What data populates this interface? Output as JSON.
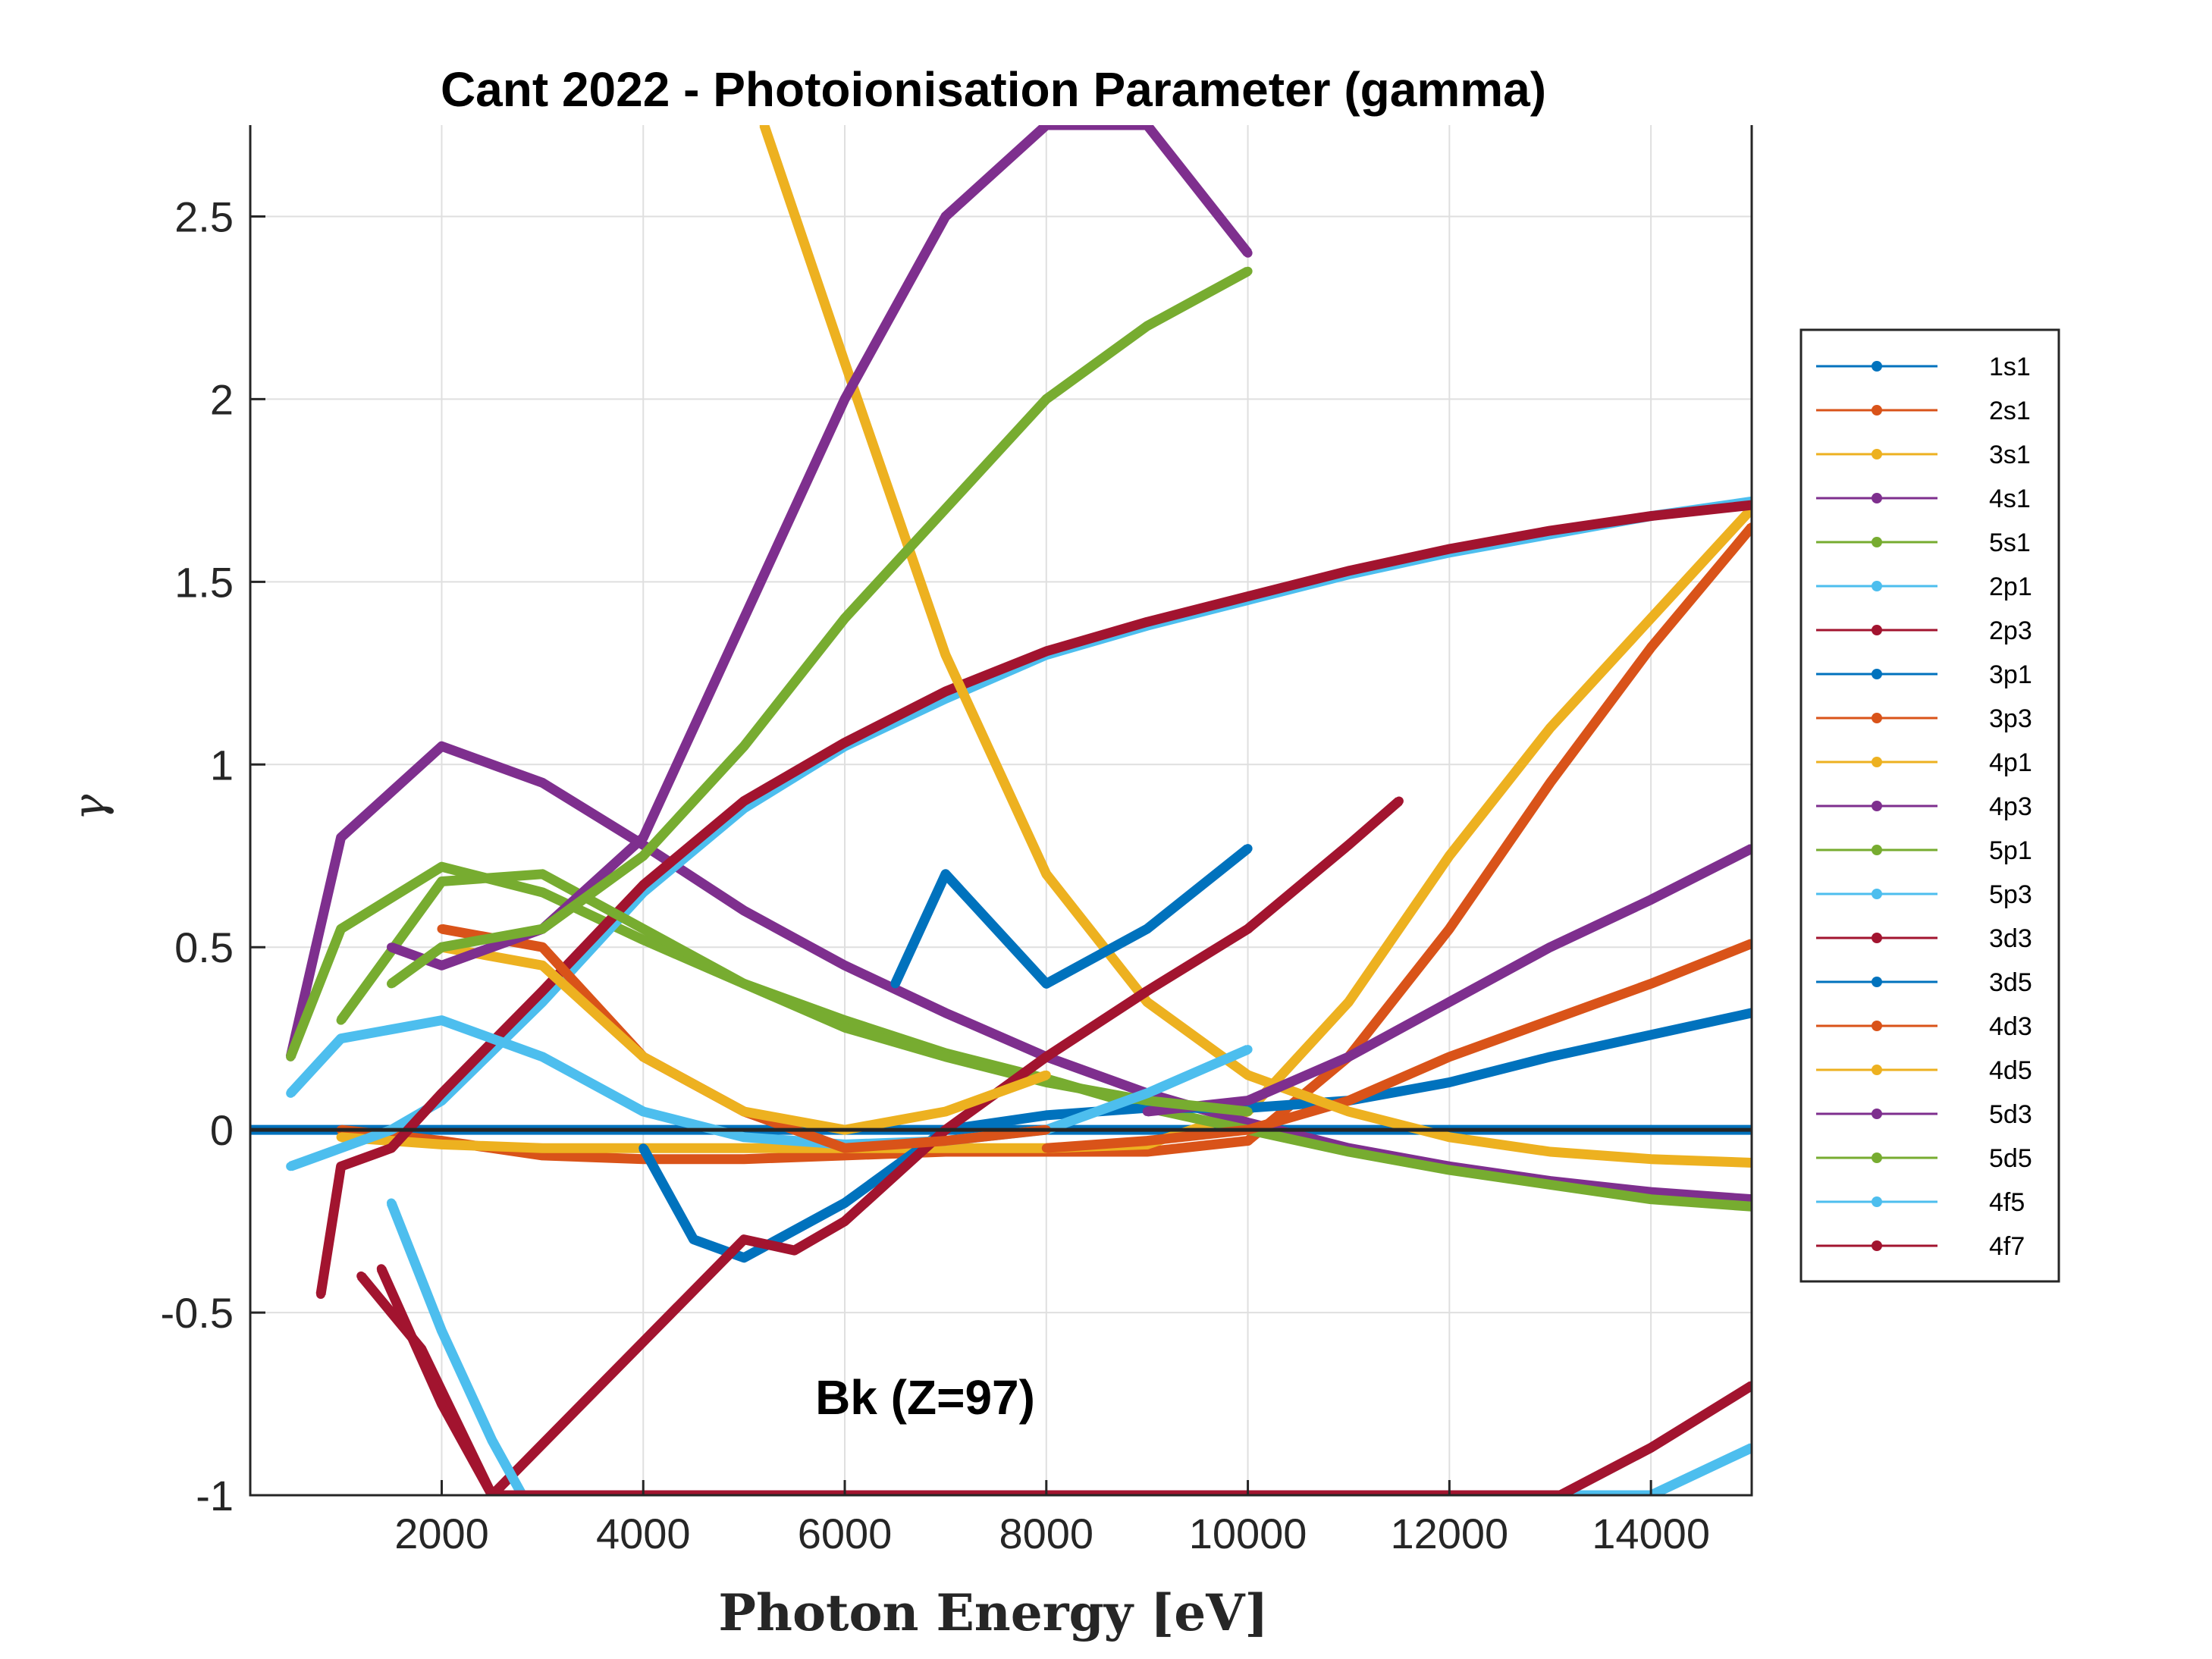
{
  "chart_data": {
    "type": "line",
    "title": "Cant 2022 - Photoionisation Parameter (gamma)",
    "xlabel": "Photon Energy [eV]",
    "ylabel": "γ",
    "xlim": [
      100,
      15000
    ],
    "ylim": [
      -1,
      2.75
    ],
    "xticks": [
      2000,
      4000,
      6000,
      8000,
      10000,
      12000,
      14000
    ],
    "xtick_labels": [
      "2000",
      "4000",
      "6000",
      "8000",
      "10000",
      "12000",
      "14000"
    ],
    "yticks": [
      -1,
      -0.5,
      0,
      0.5,
      1,
      1.5,
      2,
      2.5
    ],
    "ytick_labels": [
      "-1",
      "-0.5",
      "0",
      "0.5",
      "1",
      "1.5",
      "2",
      "2.5"
    ],
    "grid": true,
    "legend_position": "right",
    "annotation": "Bk (Z=97)",
    "series": [
      {
        "name": "1s1",
        "color": "#0072BD",
        "x": [
          100,
          15000
        ],
        "y": [
          0,
          0
        ]
      },
      {
        "name": "2s1",
        "color": "#D95319",
        "x": [
          1000,
          2000,
          3000,
          4000,
          5000,
          6000,
          7000,
          8000,
          9000,
          10000,
          11000,
          12000,
          13000,
          14000,
          15000
        ],
        "y": [
          0.0,
          -0.03,
          -0.07,
          -0.08,
          -0.08,
          -0.07,
          -0.06,
          -0.06,
          -0.06,
          -0.03,
          0.2,
          0.55,
          0.95,
          1.32,
          1.65
        ]
      },
      {
        "name": "3s1",
        "color": "#EDB120",
        "x": [
          1000,
          2000,
          3000,
          4000,
          5000,
          6000,
          7000,
          8000,
          9000,
          10000,
          11000,
          12000,
          13000,
          14000,
          15000
        ],
        "y": [
          -0.02,
          -0.04,
          -0.05,
          -0.05,
          -0.05,
          -0.05,
          -0.05,
          -0.05,
          -0.04,
          0.05,
          0.35,
          0.75,
          1.1,
          1.4,
          1.7
        ]
      },
      {
        "name": "4s1",
        "color": "#7E2F8E",
        "x": [
          500,
          1000,
          2000,
          3000,
          4000,
          5000,
          6000,
          7000,
          8000,
          9000,
          10000,
          11000,
          12000,
          13000,
          14000,
          15000
        ],
        "y": [
          0.2,
          0.8,
          1.05,
          0.95,
          0.78,
          0.6,
          0.45,
          0.32,
          0.2,
          0.1,
          0.02,
          -0.05,
          -0.1,
          -0.14,
          -0.17,
          -0.19
        ]
      },
      {
        "name": "5s1",
        "color": "#77AC30",
        "x": [
          500,
          1000,
          2000,
          3000,
          4000,
          5000,
          6000,
          7000,
          8000,
          9000,
          10000,
          11000,
          12000,
          13000,
          14000,
          15000
        ],
        "y": [
          0.2,
          0.55,
          0.72,
          0.65,
          0.52,
          0.4,
          0.3,
          0.21,
          0.14,
          0.06,
          0.0,
          -0.06,
          -0.11,
          -0.15,
          -0.19,
          -0.21
        ]
      },
      {
        "name": "2p1",
        "color": "#4DBEEE",
        "x": [
          500,
          1000,
          1500,
          2000,
          3000,
          4000,
          5000,
          6000,
          7000,
          8000,
          9000,
          10000,
          11000,
          12000,
          13000,
          14000,
          15000
        ],
        "y": [
          -0.1,
          -0.05,
          0.0,
          0.08,
          0.35,
          0.65,
          0.88,
          1.05,
          1.18,
          1.3,
          1.38,
          1.45,
          1.52,
          1.58,
          1.63,
          1.68,
          1.72
        ]
      },
      {
        "name": "2p3",
        "color": "#A2142F",
        "x": [
          800,
          1000,
          1500,
          2000,
          3000,
          4000,
          5000,
          6000,
          7000,
          8000,
          9000,
          10000,
          11000,
          12000,
          13000,
          14000,
          15000
        ],
        "y": [
          -0.45,
          -0.1,
          -0.05,
          0.1,
          0.38,
          0.67,
          0.9,
          1.06,
          1.2,
          1.31,
          1.39,
          1.46,
          1.53,
          1.59,
          1.64,
          1.68,
          1.71
        ]
      },
      {
        "name": "3p1",
        "color": "#0072BD",
        "x": [
          4000,
          4500,
          5000,
          6000,
          7000,
          8000,
          9000,
          10000,
          11000,
          12000,
          13000,
          14000,
          15000
        ],
        "y": [
          -0.05,
          -0.3,
          -0.35,
          -0.2,
          0.0,
          0.04,
          0.06,
          0.06,
          0.08,
          0.13,
          0.2,
          0.26,
          0.32
        ]
      },
      {
        "name": "3p3",
        "color": "#D95319",
        "x": [
          8000,
          9000,
          10000,
          11000,
          12000,
          13000,
          14000,
          15000
        ],
        "y": [
          -0.05,
          -0.03,
          0.0,
          0.08,
          0.2,
          0.3,
          0.4,
          0.51
        ]
      },
      {
        "name": "4p1",
        "color": "#EDB120",
        "x": [
          5200,
          6000,
          7000,
          8000,
          9000,
          10000,
          11000,
          12000,
          13000,
          14000,
          15000
        ],
        "y": [
          2.75,
          2.1,
          1.3,
          0.7,
          0.35,
          0.15,
          0.05,
          -0.02,
          -0.06,
          -0.08,
          -0.09
        ]
      },
      {
        "name": "4p3",
        "color": "#7E2F8E",
        "x": [
          9000,
          10000,
          11000,
          12000,
          13000,
          14000,
          15000
        ],
        "y": [
          0.05,
          0.08,
          0.2,
          0.35,
          0.5,
          0.63,
          0.77
        ]
      },
      {
        "name": "5p1",
        "color": "#77AC30",
        "x": [
          1000,
          2000,
          3000,
          4000,
          5000,
          6000,
          7000,
          8000,
          9000,
          10000
        ],
        "y": [
          0.3,
          0.68,
          0.7,
          0.55,
          0.4,
          0.28,
          0.2,
          0.13,
          0.08,
          0.05
        ]
      },
      {
        "name": "5p3",
        "color": "#4DBEEE",
        "x": [
          500,
          1000,
          2000,
          3000,
          4000,
          5000,
          6000,
          7000,
          8000,
          9000,
          10000
        ],
        "y": [
          0.1,
          0.25,
          0.3,
          0.2,
          0.05,
          -0.02,
          -0.04,
          -0.03,
          0.0,
          0.1,
          0.22
        ]
      },
      {
        "name": "3d3",
        "color": "#A2142F",
        "x": [
          1200,
          1800,
          2500,
          5000,
          5500,
          6000,
          7000,
          8000,
          9000,
          10000,
          11000,
          11500
        ],
        "y": [
          -0.4,
          -0.6,
          -1.0,
          -0.3,
          -0.33,
          -0.25,
          0.0,
          0.2,
          0.38,
          0.55,
          0.78,
          0.9
        ]
      },
      {
        "name": "3d5",
        "color": "#0072BD",
        "x": [
          6500,
          7000,
          7500,
          8000,
          9000,
          10000
        ],
        "y": [
          0.4,
          0.7,
          0.55,
          0.4,
          0.55,
          0.77
        ]
      },
      {
        "name": "4d3",
        "color": "#D95319",
        "x": [
          2000,
          3000,
          4000,
          5000,
          6000,
          7000,
          8000
        ],
        "y": [
          0.55,
          0.5,
          0.2,
          0.05,
          -0.05,
          -0.03,
          0.0
        ]
      },
      {
        "name": "4d5",
        "color": "#EDB120",
        "x": [
          2000,
          3000,
          4000,
          5000,
          6000,
          7000,
          8000
        ],
        "y": [
          0.5,
          0.45,
          0.2,
          0.05,
          0.0,
          0.05,
          0.15
        ]
      },
      {
        "name": "5d3",
        "color": "#7E2F8E",
        "x": [
          1500,
          2000,
          3000,
          4000,
          5000,
          6000,
          7000,
          8000,
          9000,
          10000
        ],
        "y": [
          0.5,
          0.45,
          0.55,
          0.8,
          1.4,
          2.0,
          2.5,
          2.75,
          2.75,
          2.4
        ]
      },
      {
        "name": "5d5",
        "color": "#77AC30",
        "x": [
          1500,
          2000,
          3000,
          4000,
          5000,
          6000,
          7000,
          8000,
          9000,
          10000
        ],
        "y": [
          0.4,
          0.5,
          0.55,
          0.75,
          1.05,
          1.4,
          1.7,
          2.0,
          2.2,
          2.35
        ]
      },
      {
        "name": "4f5",
        "color": "#4DBEEE",
        "x": [
          1500,
          2000,
          2500,
          2800,
          14000,
          15000
        ],
        "y": [
          -0.2,
          -0.55,
          -0.85,
          -1.0,
          -1.0,
          -0.87
        ]
      },
      {
        "name": "4f7",
        "color": "#A2142F",
        "x": [
          1400,
          2000,
          2500,
          13100,
          14000,
          15000
        ],
        "y": [
          -0.38,
          -0.75,
          -1.0,
          -1.0,
          -0.87,
          -0.7
        ]
      }
    ]
  }
}
